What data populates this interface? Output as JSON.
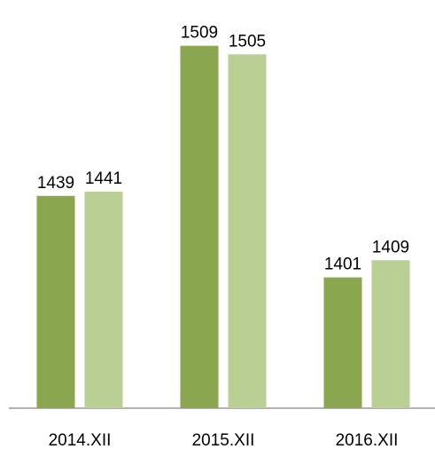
{
  "chart_data": {
    "type": "bar",
    "categories": [
      "2014.XII",
      "2015.XII",
      "2016.XII"
    ],
    "series": [
      {
        "color": "#8aa64e",
        "values": [
          1439,
          1509,
          1401
        ]
      },
      {
        "color": "#b9cf93",
        "values": [
          1441,
          1505,
          1409
        ]
      }
    ],
    "ylim": [
      1340,
      1520
    ]
  }
}
